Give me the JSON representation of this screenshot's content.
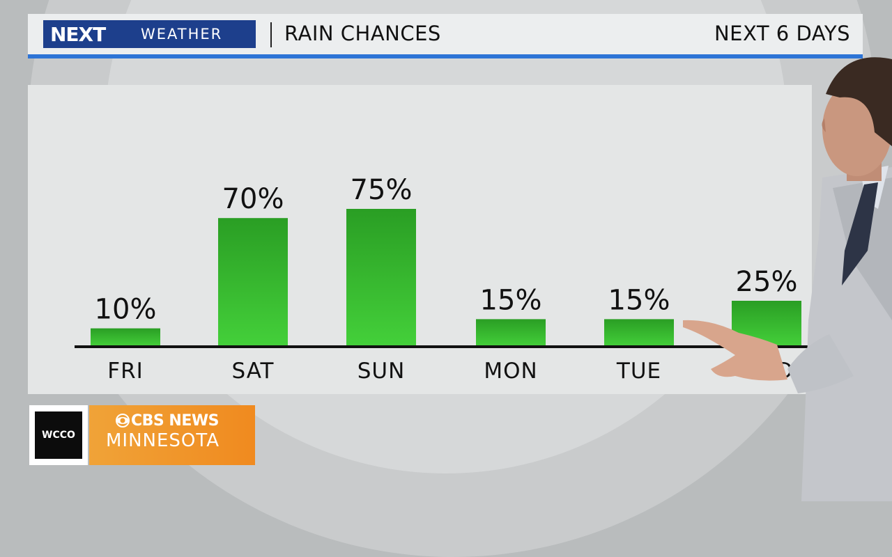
{
  "header": {
    "brand_next": "NEXT",
    "brand_weather": "WEATHER",
    "title": "RAIN CHANCES",
    "range": "NEXT 6 DAYS"
  },
  "bug": {
    "station": "WCCO",
    "network": "CBS NEWS",
    "market": "MINNESOTA"
  },
  "colors": {
    "bar_top": "#2a9e24",
    "bar_bottom": "#44d03a",
    "accent": "#2d74d6",
    "brand": "#1d3f8c",
    "bug_orange": "#f0a338"
  },
  "chart_data": {
    "type": "bar",
    "title": "RAIN CHANCES",
    "categories": [
      "FRI",
      "SAT",
      "SUN",
      "MON",
      "TUE",
      "WED"
    ],
    "values": [
      10,
      70,
      75,
      15,
      15,
      25
    ],
    "value_labels": [
      "10%",
      "70%",
      "75%",
      "15%",
      "15%",
      "25%"
    ],
    "unit": "%",
    "ylim": [
      0,
      100
    ],
    "grid": false,
    "legend": "none"
  }
}
